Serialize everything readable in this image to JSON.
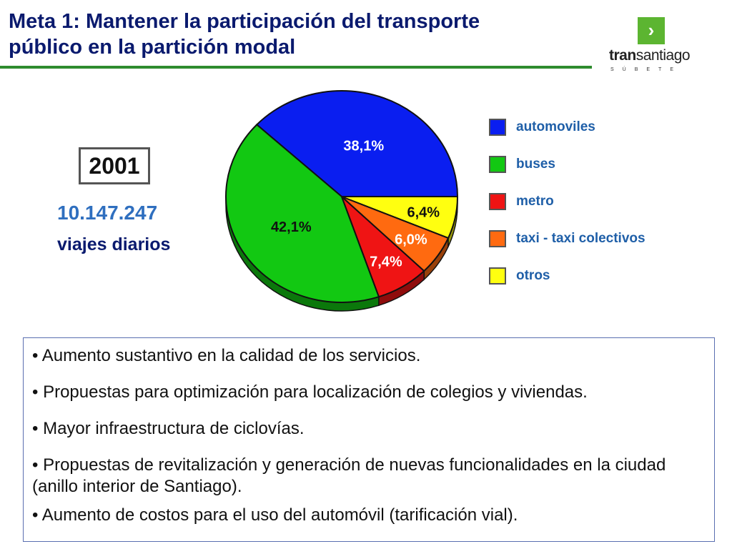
{
  "header": {
    "title_line1": "Meta 1: Mantener la participación del transporte",
    "title_line2": "público en la partición modal",
    "logo": {
      "arrow": "›",
      "word_bold": "tran",
      "word_rest": "santiago",
      "subtitle": "SÚBETE"
    }
  },
  "summary": {
    "year": "2001",
    "trips_value": "10.147.247",
    "trips_label": "viajes diarios"
  },
  "chart_data": {
    "type": "pie",
    "title": "",
    "slices": [
      {
        "label": "automoviles",
        "value": 38.1,
        "display": "38,1%",
        "color": "#0a1ef0"
      },
      {
        "label": "buses",
        "value": 42.1,
        "display": "42,1%",
        "color": "#12c812"
      },
      {
        "label": "metro",
        "value": 7.4,
        "display": "7,4%",
        "color": "#ef1414"
      },
      {
        "label": "taxi -  taxi colectivos",
        "value": 6.0,
        "display": "6,0%",
        "color": "#ff6a10"
      },
      {
        "label": "otros",
        "value": 6.4,
        "display": "6,4%",
        "color": "#ffff10"
      }
    ],
    "legend_position": "right"
  },
  "bullets": [
    "• Aumento sustantivo en la calidad de los servicios.",
    "• Propuestas para optimización para localización de colegios y viviendas.",
    "• Mayor infraestructura de ciclovías.",
    "• Propuestas de revitalización y generación de nuevas funcionalidades en la ciudad (anillo interior de Santiago).",
    "• Aumento de costos para el uso del automóvil (tarificación vial)."
  ]
}
